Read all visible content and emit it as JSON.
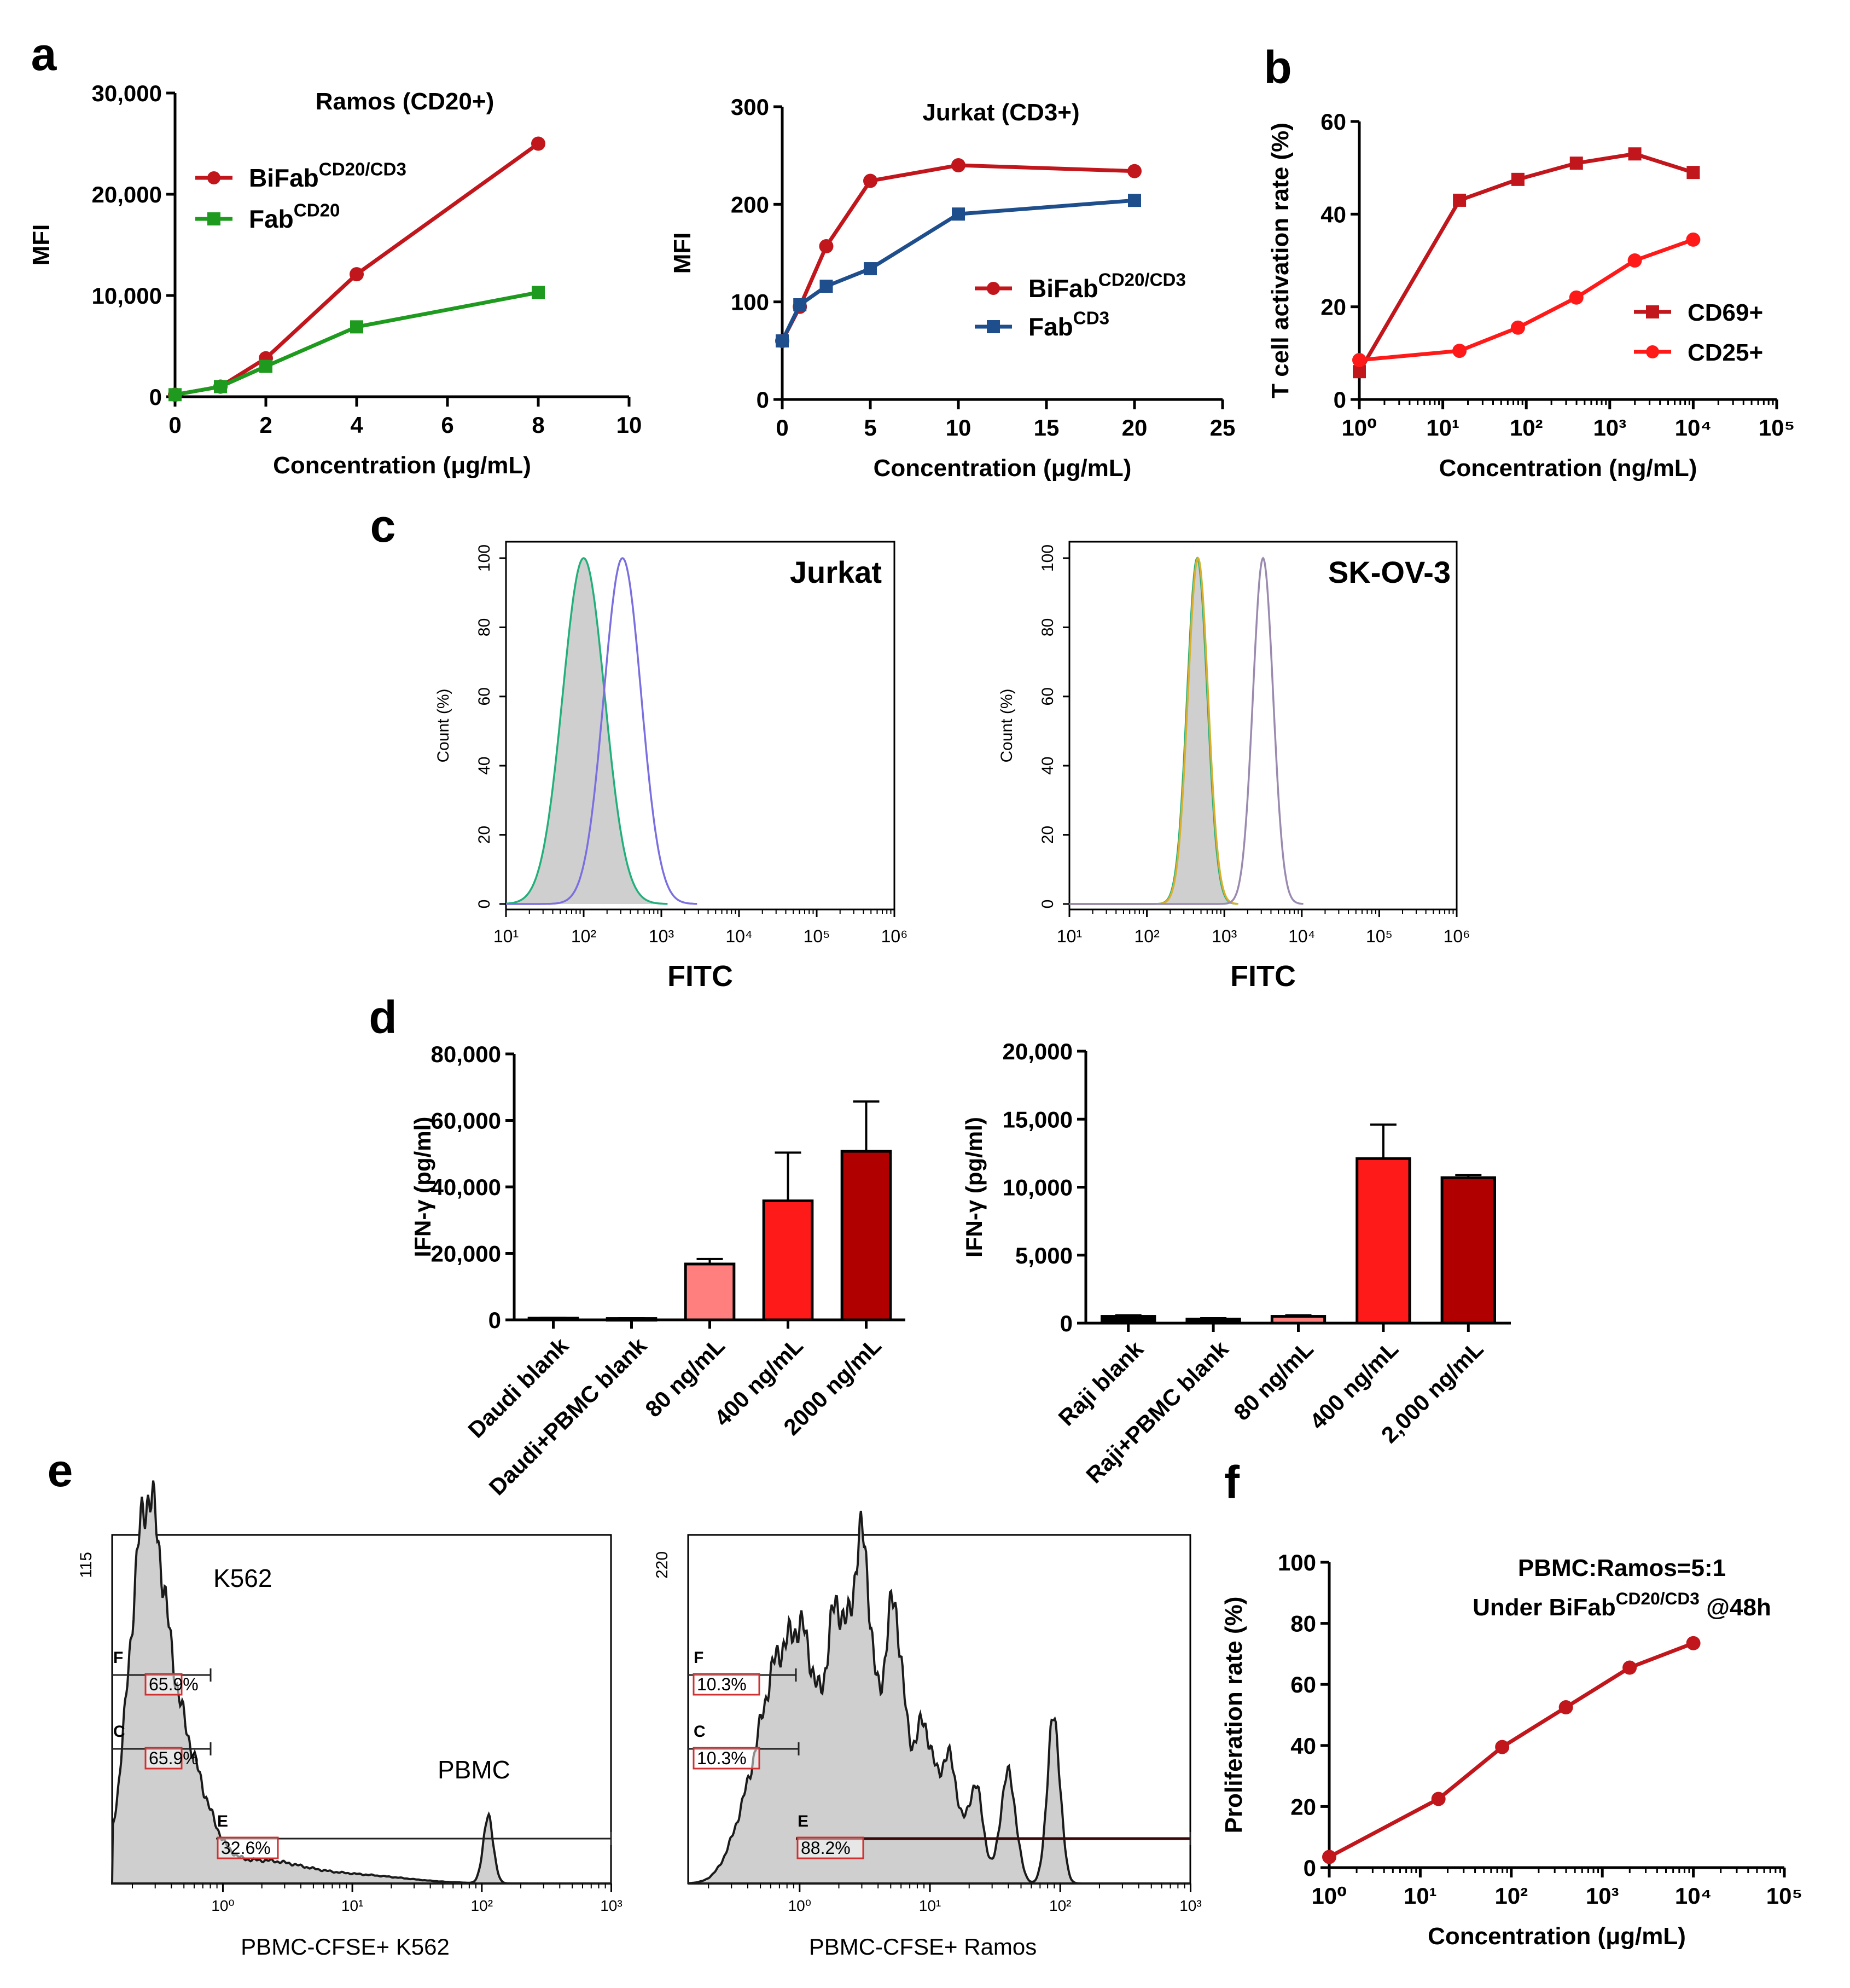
{
  "panel_labels": {
    "a": "a",
    "b": "b",
    "c": "c",
    "d": "d",
    "e": "e",
    "f": "f"
  },
  "colors": {
    "red": "#c0161c",
    "green": "#1e9a1e",
    "blue": "#1f4e8c",
    "bright_red": "#ff1a1a",
    "pink": "#ff7f7f",
    "dark_red": "#b00000",
    "grey_fill": "#cfcfcf",
    "teal": "#22b07a",
    "violet": "#7a6fe0",
    "olive": "#d8b030",
    "mauve": "#9a8ab0"
  },
  "chart_data": [
    {
      "id": "a1",
      "type": "line",
      "title": "Ramos (CD20+)",
      "xlabel": "Concentration (μg/mL)",
      "ylabel": "MFI",
      "xlim": [
        0,
        10
      ],
      "ylim": [
        0,
        30000
      ],
      "xticks": [
        0,
        2,
        4,
        6,
        8,
        10
      ],
      "xtick_labels": [
        "0",
        "2",
        "4",
        "6",
        "8",
        "10"
      ],
      "yticks": [
        0,
        10000,
        20000,
        30000
      ],
      "ytick_labels": [
        "0",
        "10,000",
        "20,000",
        "30,000"
      ],
      "series": [
        {
          "name": "BiFab",
          "sup": "CD20/CD3",
          "marker": "circle",
          "color": "#c0161c",
          "x": [
            0,
            1,
            2,
            4,
            8
          ],
          "y": [
            200,
            1000,
            3800,
            12100,
            25000
          ]
        },
        {
          "name": "Fab",
          "sup": "CD20",
          "marker": "square",
          "color": "#1e9a1e",
          "x": [
            0,
            1,
            2,
            4,
            8
          ],
          "y": [
            200,
            1000,
            3000,
            6900,
            10300
          ]
        }
      ]
    },
    {
      "id": "a2",
      "type": "line",
      "title": "Jurkat (CD3+)",
      "xlabel": "Concentration (μg/mL)",
      "ylabel": "MFI",
      "xlim": [
        0,
        25
      ],
      "ylim": [
        0,
        300
      ],
      "xticks": [
        0,
        5,
        10,
        15,
        20,
        25
      ],
      "xtick_labels": [
        "0",
        "5",
        "10",
        "15",
        "20",
        "25"
      ],
      "yticks": [
        0,
        100,
        200,
        300
      ],
      "ytick_labels": [
        "0",
        "100",
        "200",
        "300"
      ],
      "series": [
        {
          "name": "BiFab",
          "sup": "CD20/CD3",
          "marker": "circle",
          "color": "#c0161c",
          "x": [
            0,
            1,
            2.5,
            5,
            10,
            20
          ],
          "y": [
            60,
            95,
            157,
            224,
            240,
            234
          ]
        },
        {
          "name": "Fab",
          "sup": "CD3",
          "marker": "square",
          "color": "#1f4e8c",
          "x": [
            0,
            1,
            2.5,
            5,
            10,
            20
          ],
          "y": [
            60,
            97,
            116,
            134,
            190,
            204
          ]
        }
      ]
    },
    {
      "id": "b",
      "type": "line",
      "log_x": true,
      "xlabel": "Concentration (ng/mL)",
      "ylabel": "T cell activation rate (%)",
      "xlim_log10": [
        0,
        5
      ],
      "ylim": [
        0,
        60
      ],
      "xtick_labels": [
        "10⁰",
        "10¹",
        "10²",
        "10³",
        "10⁴",
        "10⁵"
      ],
      "yticks": [
        0,
        20,
        40,
        60
      ],
      "ytick_labels": [
        "0",
        "20",
        "40",
        "60"
      ],
      "series": [
        {
          "name": "CD69+",
          "marker": "square",
          "color": "#c0161c",
          "log10x": [
            0,
            1.2,
            1.9,
            2.6,
            3.3,
            4.0
          ],
          "y": [
            6,
            43,
            47.5,
            51,
            53,
            49
          ]
        },
        {
          "name": "CD25+",
          "marker": "circle",
          "color": "#ff1a1a",
          "log10x": [
            0,
            1.2,
            1.9,
            2.6,
            3.3,
            4.0
          ],
          "y": [
            8.5,
            10.5,
            15.5,
            22,
            30,
            34.5
          ]
        }
      ]
    },
    {
      "id": "c1",
      "type": "histogram",
      "label": "Jurkat",
      "xlabel": "FITC",
      "ylabel": "Count (%)",
      "xlim_log10": [
        1,
        6
      ],
      "ylim": [
        0,
        100
      ],
      "xtick_labels": [
        "10¹",
        "10²",
        "10³",
        "10⁴",
        "10⁵",
        "10⁶"
      ],
      "yticks": [
        0,
        20,
        40,
        60,
        80,
        100
      ],
      "peaks": [
        {
          "role": "control-filled",
          "center_log10": 2.0,
          "width": 0.27,
          "color": "#22b07a"
        },
        {
          "role": "stained",
          "center_log10": 2.5,
          "width": 0.24,
          "color": "#7a6fe0"
        }
      ]
    },
    {
      "id": "c2",
      "type": "histogram",
      "label": "SK-OV-3",
      "xlabel": "FITC",
      "ylabel": "Count (%)",
      "xlim_log10": [
        1,
        6
      ],
      "ylim": [
        0,
        100
      ],
      "xtick_labels": [
        "10¹",
        "10²",
        "10³",
        "10⁴",
        "10⁵",
        "10⁶"
      ],
      "yticks": [
        0,
        20,
        40,
        60,
        80,
        100
      ],
      "peaks": [
        {
          "role": "control-filled",
          "center_log10": 2.65,
          "width": 0.13,
          "color": "#22b07a"
        },
        {
          "role": "control-2",
          "center_log10": 2.66,
          "width": 0.13,
          "color": "#d8b030"
        },
        {
          "role": "stained",
          "center_log10": 3.5,
          "width": 0.13,
          "color": "#9a8ab0"
        }
      ]
    },
    {
      "id": "d1",
      "type": "bar",
      "ylabel": "IFN-γ (pg/ml)",
      "ylim": [
        0,
        80000
      ],
      "yticks": [
        0,
        20000,
        40000,
        60000,
        80000
      ],
      "ytick_labels": [
        "0",
        "20,000",
        "40,000",
        "60,000",
        "80,000"
      ],
      "categories": [
        "Daudi blank",
        "Daudi+PBMC blank",
        "80 ng/mL",
        "400 ng/mL",
        "2000 ng/mL"
      ],
      "values": [
        500,
        400,
        16800,
        35800,
        50700
      ],
      "errors": [
        100,
        100,
        1500,
        14500,
        15000
      ],
      "fills": [
        "#000000",
        "#000000",
        "#ff7f7f",
        "#ff1a1a",
        "#b00000"
      ]
    },
    {
      "id": "d2",
      "type": "bar",
      "ylabel": "IFN-γ (pg/ml)",
      "ylim": [
        0,
        20000
      ],
      "yticks": [
        0,
        5000,
        10000,
        15000,
        20000
      ],
      "ytick_labels": [
        "0",
        "5,000",
        "10,000",
        "15,000",
        "20,000"
      ],
      "categories": [
        "Raji blank",
        "Raji+PBMC blank",
        "80 ng/mL",
        "400 ng/mL",
        "2,000 ng/mL"
      ],
      "values": [
        500,
        300,
        500,
        12100,
        10700
      ],
      "errors": [
        80,
        60,
        80,
        2500,
        200
      ],
      "fills": [
        "#000000",
        "#000000",
        "#ff7f7f",
        "#ff1a1a",
        "#b00000"
      ]
    },
    {
      "id": "e1",
      "type": "histogram",
      "xlabel": "PBMC-CFSE+ K562",
      "ymax_label": "115",
      "xtick_labels": [
        "10⁰",
        "10¹",
        "10²",
        "10³"
      ],
      "annotations": [
        "K562",
        "PBMC"
      ],
      "gates": [
        {
          "letter": "F",
          "percent": "65.9%"
        },
        {
          "letter": "C",
          "percent": "65.9%"
        },
        {
          "letter": "E",
          "percent": "32.6%"
        }
      ]
    },
    {
      "id": "e2",
      "type": "histogram",
      "xlabel": "PBMC-CFSE+ Ramos",
      "ymax_label": "220",
      "xtick_labels": [
        "10⁰",
        "10¹",
        "10²",
        "10³"
      ],
      "gates": [
        {
          "letter": "F",
          "percent": "10.3%"
        },
        {
          "letter": "C",
          "percent": "10.3%"
        },
        {
          "letter": "E",
          "percent": "88.2%"
        }
      ]
    },
    {
      "id": "f",
      "type": "line",
      "log_x": true,
      "title_line1": "PBMC:Ramos=5:1",
      "title_line2_pre": "Under BiFab",
      "title_line2_sup": "CD20/CD3",
      "title_line2_post": " @48h",
      "xlabel": "Concentration (μg/mL)",
      "ylabel": "Proliferation rate (%)",
      "xlim_log10": [
        0,
        5
      ],
      "ylim": [
        0,
        100
      ],
      "xtick_labels": [
        "10⁰",
        "10¹",
        "10²",
        "10³",
        "10⁴",
        "10⁵"
      ],
      "yticks": [
        0,
        20,
        40,
        60,
        80,
        100
      ],
      "ytick_labels": [
        "0",
        "20",
        "40",
        "60",
        "80",
        "100"
      ],
      "series": [
        {
          "name": "Proliferation",
          "marker": "circle",
          "color": "#c0161c",
          "log10x": [
            0,
            1.2,
            1.9,
            2.6,
            3.3,
            4.0
          ],
          "y": [
            3.5,
            22.5,
            39.5,
            52.5,
            65.5,
            73.5
          ]
        }
      ]
    }
  ]
}
